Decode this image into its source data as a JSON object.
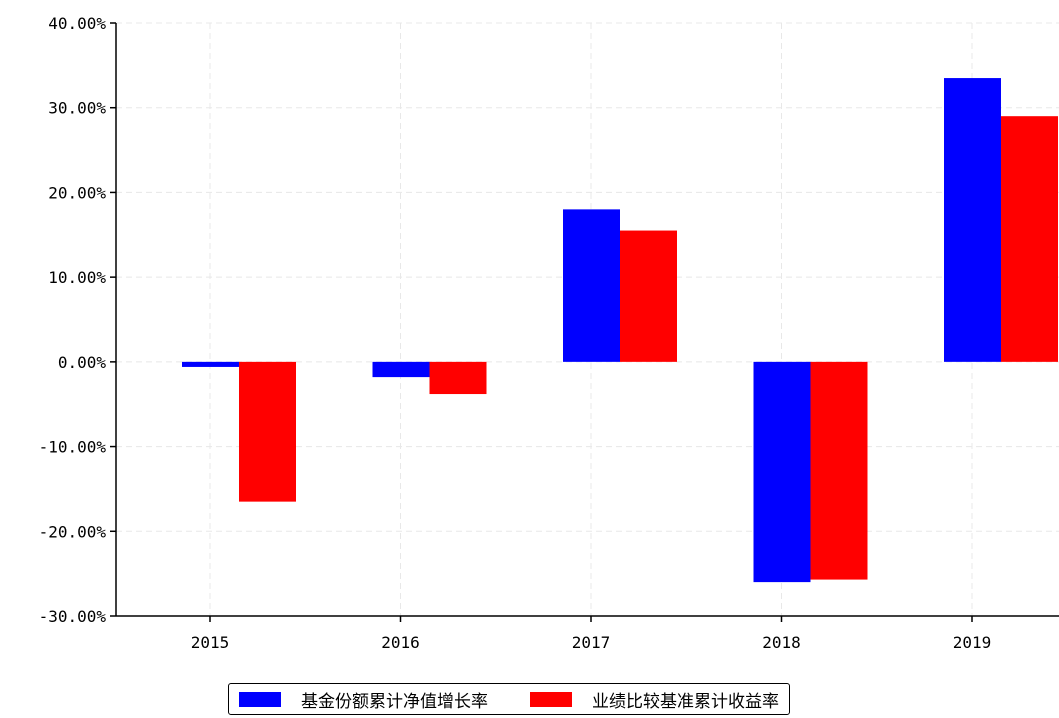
{
  "chart_data": {
    "type": "bar",
    "categories": [
      "2015",
      "2016",
      "2017",
      "2018",
      "2019"
    ],
    "series": [
      {
        "name": "基金份额累计净值增长率",
        "color": "#0000ff",
        "values": [
          -0.6,
          -1.8,
          18.0,
          -26.0,
          33.5
        ]
      },
      {
        "name": "业绩比较基准累计收益率",
        "color": "#ff0000",
        "values": [
          -16.5,
          -3.8,
          15.5,
          -25.7,
          29.0
        ]
      }
    ],
    "ylim": [
      -30,
      40
    ],
    "yticks": [
      "-30.00%",
      "-20.00%",
      "-10.00%",
      "0.00%",
      "10.00%",
      "20.00%",
      "30.00%",
      "40.00%"
    ],
    "ytick_values": [
      -30,
      -20,
      -10,
      0,
      10,
      20,
      30,
      40
    ],
    "grid": true,
    "legend_placement": "bottom-center"
  }
}
